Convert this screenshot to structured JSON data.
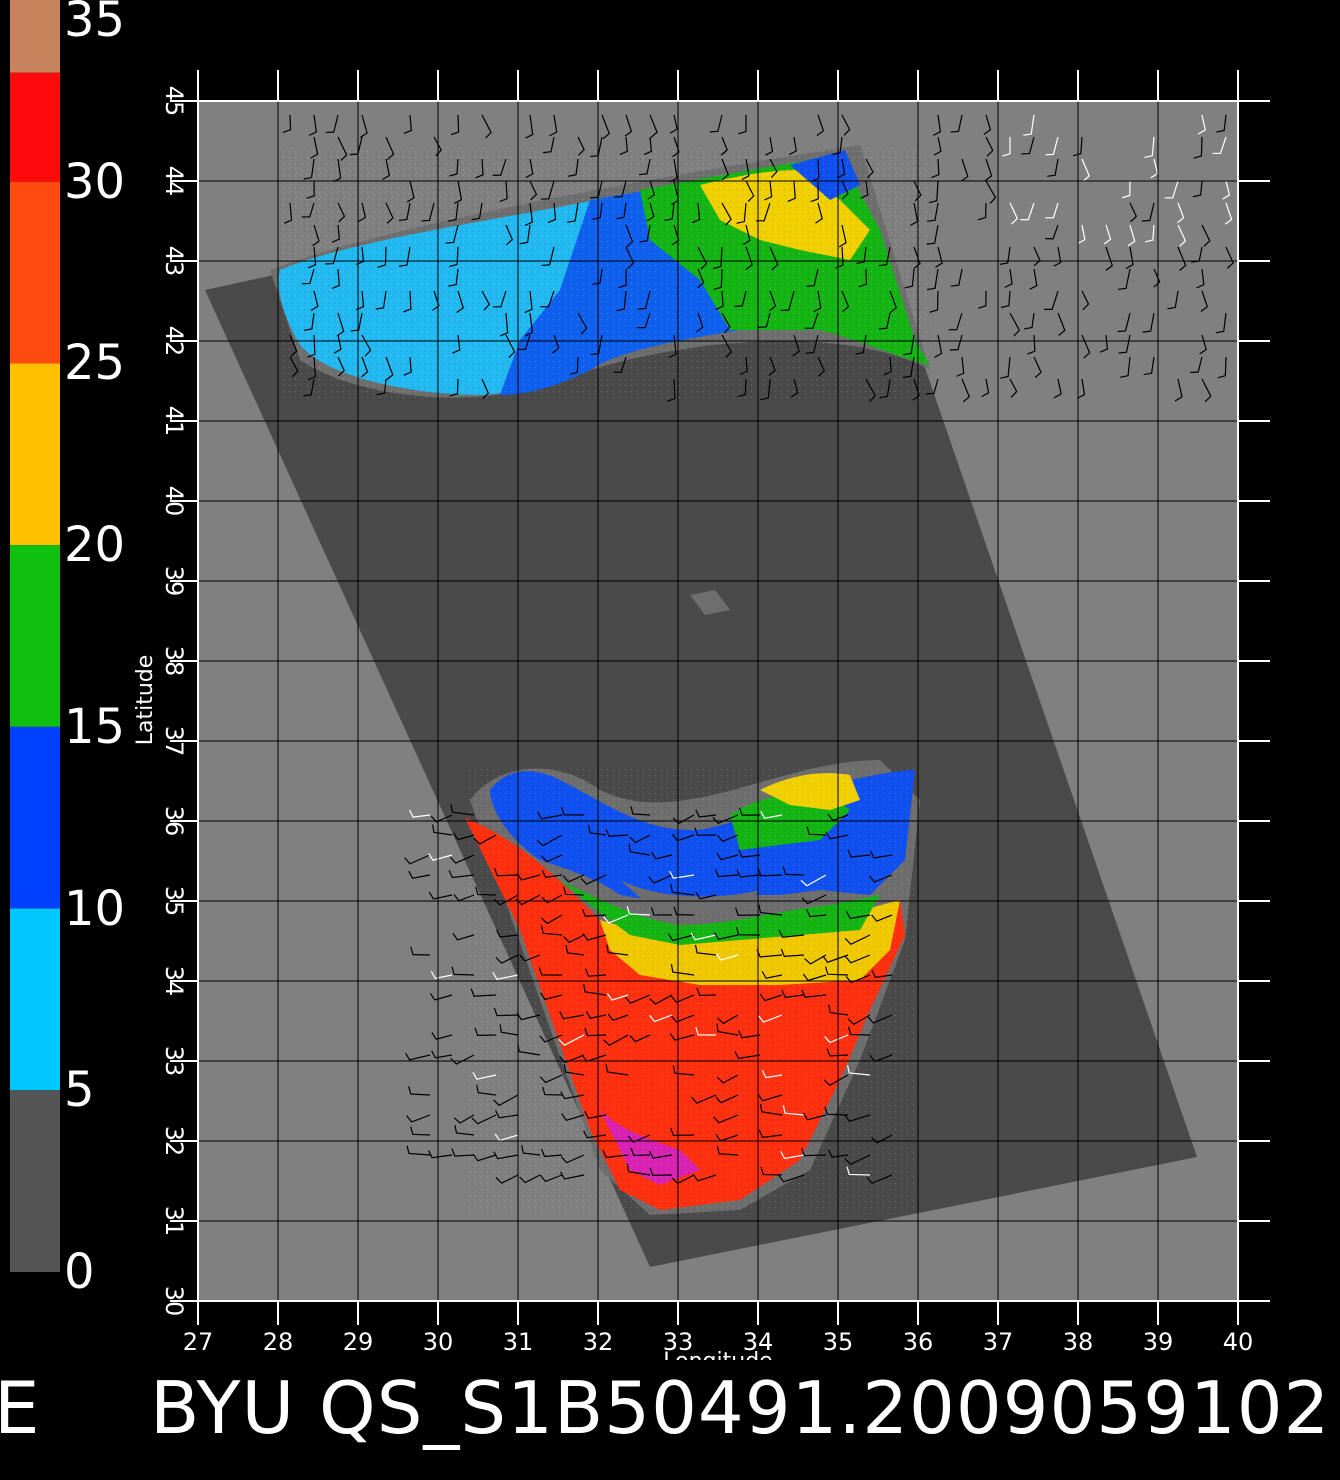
{
  "colorbar": {
    "labels": [
      "35",
      "30",
      "25",
      "20",
      "15",
      "10",
      "5",
      "0"
    ],
    "segments": [
      {
        "from": 35,
        "to": 33,
        "color": "#c8845a"
      },
      {
        "from": 33,
        "to": 30,
        "color": "#ff0a0a"
      },
      {
        "from": 30,
        "to": 25,
        "color": "#ff4a10"
      },
      {
        "from": 25,
        "to": 20,
        "color": "#ffc000"
      },
      {
        "from": 20,
        "to": 15,
        "color": "#10c010"
      },
      {
        "from": 15,
        "to": 10,
        "color": "#0040ff"
      },
      {
        "from": 10,
        "to": 5,
        "color": "#00c8ff"
      },
      {
        "from": 5,
        "to": 0,
        "color": "#555555"
      }
    ]
  },
  "map": {
    "xlabel": "Longitude",
    "ylabel": "Latitude",
    "lon_ticks": [
      "27",
      "28",
      "29",
      "30",
      "31",
      "32",
      "33",
      "34",
      "35",
      "36",
      "37",
      "38",
      "39",
      "40"
    ],
    "lat_ticks": [
      "30",
      "31",
      "32",
      "33",
      "34",
      "35",
      "36",
      "37",
      "38",
      "39",
      "40",
      "41",
      "42",
      "43",
      "44",
      "45"
    ],
    "lon_range": [
      27,
      40
    ],
    "lat_range": [
      30,
      45
    ],
    "background_color": "#808080",
    "swath_color": "#4a4a4a",
    "grid": true
  },
  "caption": {
    "text": "BYU  QS_S1B50491.2009059102",
    "edge_char": "E"
  }
}
